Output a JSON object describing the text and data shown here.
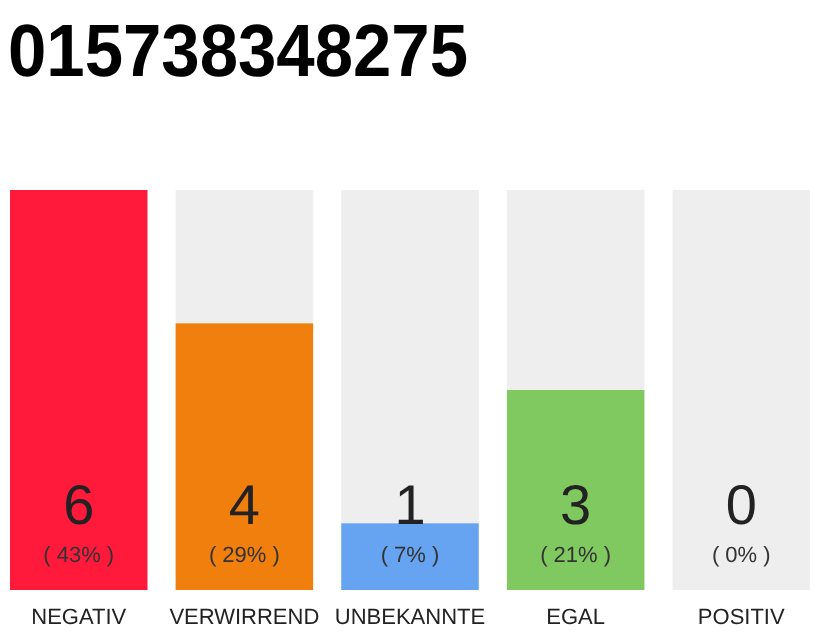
{
  "chart_data": {
    "type": "bar",
    "title": "015738348275",
    "categories": [
      "NEGATIV",
      "VERWIRREND",
      "UNBEKANNTE",
      "EGAL",
      "POSITIV"
    ],
    "values": [
      6,
      4,
      1,
      3,
      0
    ],
    "colors": [
      "#ff1a3c",
      "#f07f0e",
      "#66a3f0",
      "#80c860",
      "#80c860"
    ],
    "data_labels": true,
    "tick_labels": "x",
    "annotations": [
      "( 43% )",
      "( 29% )",
      "( 7% )",
      "( 21% )",
      "( 0% )"
    ]
  }
}
